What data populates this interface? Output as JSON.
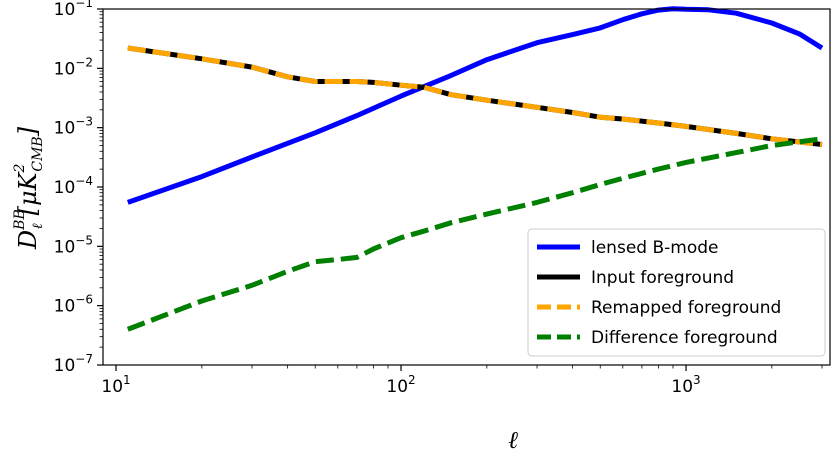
{
  "chart_data": {
    "type": "line",
    "xscale": "log",
    "yscale": "log",
    "xlabel": "ℓ",
    "ylabel": "D_ℓ^{BB}[μK^2_{CMB}]",
    "xlim": [
      9,
      3200
    ],
    "ylim": [
      1e-07,
      0.1
    ],
    "xticks": [
      {
        "value": 10,
        "base": "10",
        "exp": "1"
      },
      {
        "value": 100,
        "base": "10",
        "exp": "2"
      },
      {
        "value": 1000,
        "base": "10",
        "exp": "3"
      }
    ],
    "yticks": [
      {
        "value": 1e-07,
        "base": "10",
        "exp": "−7"
      },
      {
        "value": 1e-06,
        "base": "10",
        "exp": "−6"
      },
      {
        "value": 1e-05,
        "base": "10",
        "exp": "−5"
      },
      {
        "value": 0.0001,
        "base": "10",
        "exp": "−4"
      },
      {
        "value": 0.001,
        "base": "10",
        "exp": "−3"
      },
      {
        "value": 0.01,
        "base": "10",
        "exp": "−2"
      },
      {
        "value": 0.1,
        "base": "10",
        "exp": "−1"
      }
    ],
    "legend_position": "lower-right",
    "grid": false,
    "series": [
      {
        "name": "lensed B-mode",
        "color": "#0000ff",
        "style": "solid",
        "x": [
          11,
          20,
          30,
          50,
          70,
          100,
          150,
          200,
          300,
          400,
          500,
          600,
          700,
          800,
          900,
          1000,
          1200,
          1500,
          2000,
          2500,
          3000
        ],
        "y": [
          5.5e-05,
          0.00015,
          0.00032,
          0.00082,
          0.0016,
          0.0034,
          0.0076,
          0.014,
          0.027,
          0.037,
          0.048,
          0.066,
          0.083,
          0.096,
          0.101,
          0.099,
          0.097,
          0.085,
          0.058,
          0.038,
          0.022
        ]
      },
      {
        "name": "Input foreground",
        "color": "#000000",
        "style": "solid",
        "x": [
          11,
          20,
          30,
          40,
          50,
          60,
          70,
          80,
          100,
          120,
          150,
          200,
          300,
          400,
          500,
          600,
          800,
          1000,
          1500,
          2000,
          3000
        ],
        "y": [
          0.022,
          0.0145,
          0.0105,
          0.0072,
          0.006,
          0.006,
          0.006,
          0.0058,
          0.0052,
          0.0048,
          0.0036,
          0.0029,
          0.0022,
          0.0018,
          0.0015,
          0.0014,
          0.0012,
          0.00105,
          0.0008,
          0.00065,
          0.00052
        ]
      },
      {
        "name": "Remapped foreground",
        "color": "#ffa500",
        "style": "dashed",
        "x": [
          11,
          20,
          30,
          40,
          50,
          60,
          70,
          80,
          100,
          120,
          150,
          200,
          300,
          400,
          500,
          600,
          800,
          1000,
          1500,
          2000,
          3000
        ],
        "y": [
          0.022,
          0.0145,
          0.0105,
          0.0072,
          0.006,
          0.006,
          0.006,
          0.0058,
          0.0052,
          0.0048,
          0.0036,
          0.0029,
          0.0022,
          0.0018,
          0.0015,
          0.0014,
          0.0012,
          0.00105,
          0.0008,
          0.00065,
          0.00052
        ]
      },
      {
        "name": "Difference foreground",
        "color": "#008000",
        "style": "dashed",
        "x": [
          11,
          20,
          30,
          40,
          50,
          60,
          70,
          80,
          100,
          120,
          150,
          200,
          300,
          400,
          500,
          600,
          800,
          1000,
          1500,
          2000,
          3000
        ],
        "y": [
          4e-07,
          1.2e-06,
          2.2e-06,
          3.8e-06,
          5.5e-06,
          6e-06,
          6.5e-06,
          9e-06,
          1.4e-05,
          1.8e-05,
          2.5e-05,
          3.5e-05,
          5.5e-05,
          8e-05,
          0.00011,
          0.00014,
          0.0002,
          0.00026,
          0.00038,
          0.0005,
          0.00065
        ]
      }
    ]
  }
}
